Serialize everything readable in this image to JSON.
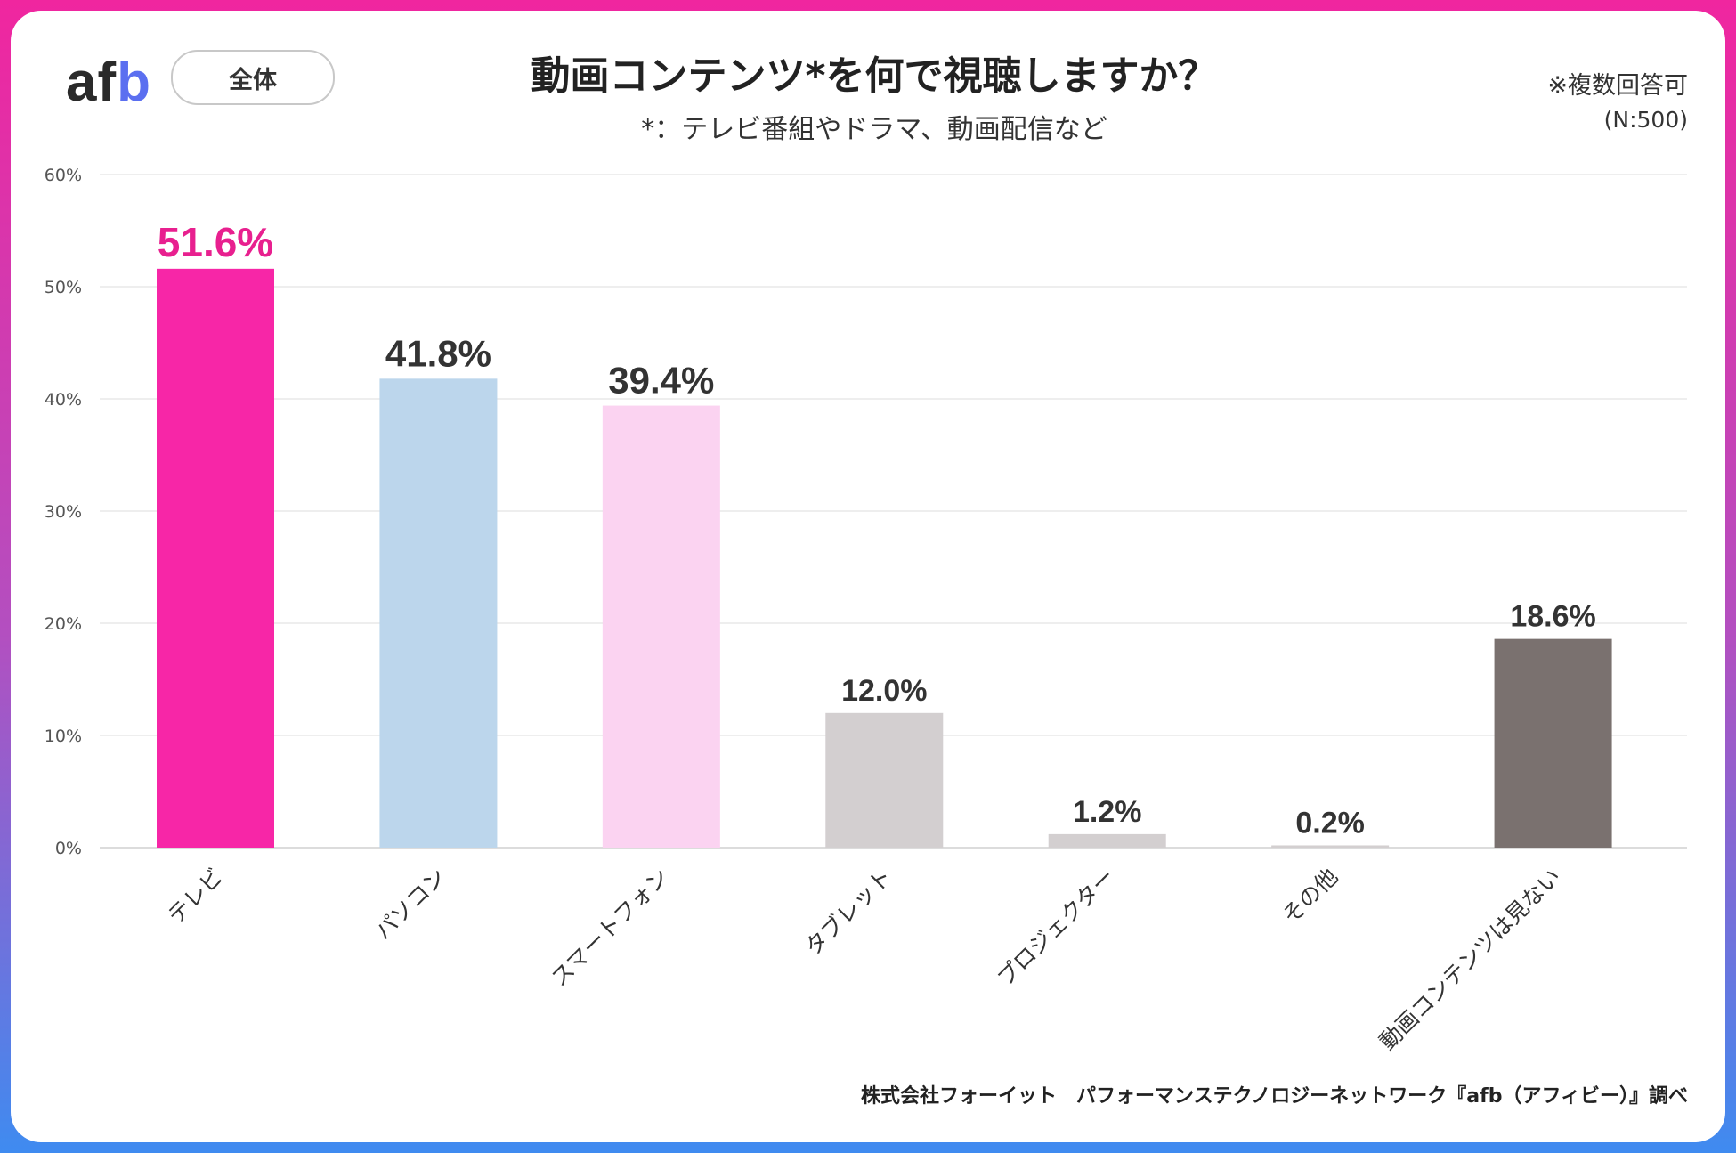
{
  "header": {
    "logo_text": "afb",
    "segment_label": "全体",
    "title": "動画コンテンツ*を何で視聴しますか？",
    "subtitle": "*：テレビ番組やドラマ、動画配信など",
    "note_multi": "※複数回答可",
    "note_n": "(N:500)"
  },
  "footer": {
    "source": "株式会社フォーイット　パフォーマンステクノロジーネットワーク『afb（アフィビー）』調べ"
  },
  "chart_data": {
    "type": "bar",
    "title": "動画コンテンツ*を何で視聴しますか？",
    "subtitle": "*：テレビ番組やドラマ、動画配信など",
    "xlabel": "",
    "ylabel": "",
    "ylim": [
      0,
      60
    ],
    "yticks": [
      0,
      10,
      20,
      30,
      40,
      50,
      60
    ],
    "ytick_labels": [
      "0%",
      "10%",
      "20%",
      "30%",
      "40%",
      "50%",
      "60%"
    ],
    "grid": true,
    "categories": [
      "テレビ",
      "パソコン",
      "スマートフォン",
      "タブレット",
      "プロジェクター",
      "その他",
      "動画コンテンツは見ない"
    ],
    "values": [
      51.6,
      41.8,
      39.4,
      12.0,
      1.2,
      0.2,
      18.6
    ],
    "value_labels": [
      "51.6%",
      "41.8%",
      "39.4%",
      "12.0%",
      "1.2%",
      "0.2%",
      "18.6%"
    ],
    "colors": [
      "#f726a7",
      "#bcd6ec",
      "#fbd3f1",
      "#d3cfd0",
      "#d3cfd0",
      "#d3cfd0",
      "#7a716f"
    ],
    "label_colors": [
      "#e8208f",
      "#333333",
      "#333333",
      "#333333",
      "#333333",
      "#333333",
      "#333333"
    ]
  }
}
